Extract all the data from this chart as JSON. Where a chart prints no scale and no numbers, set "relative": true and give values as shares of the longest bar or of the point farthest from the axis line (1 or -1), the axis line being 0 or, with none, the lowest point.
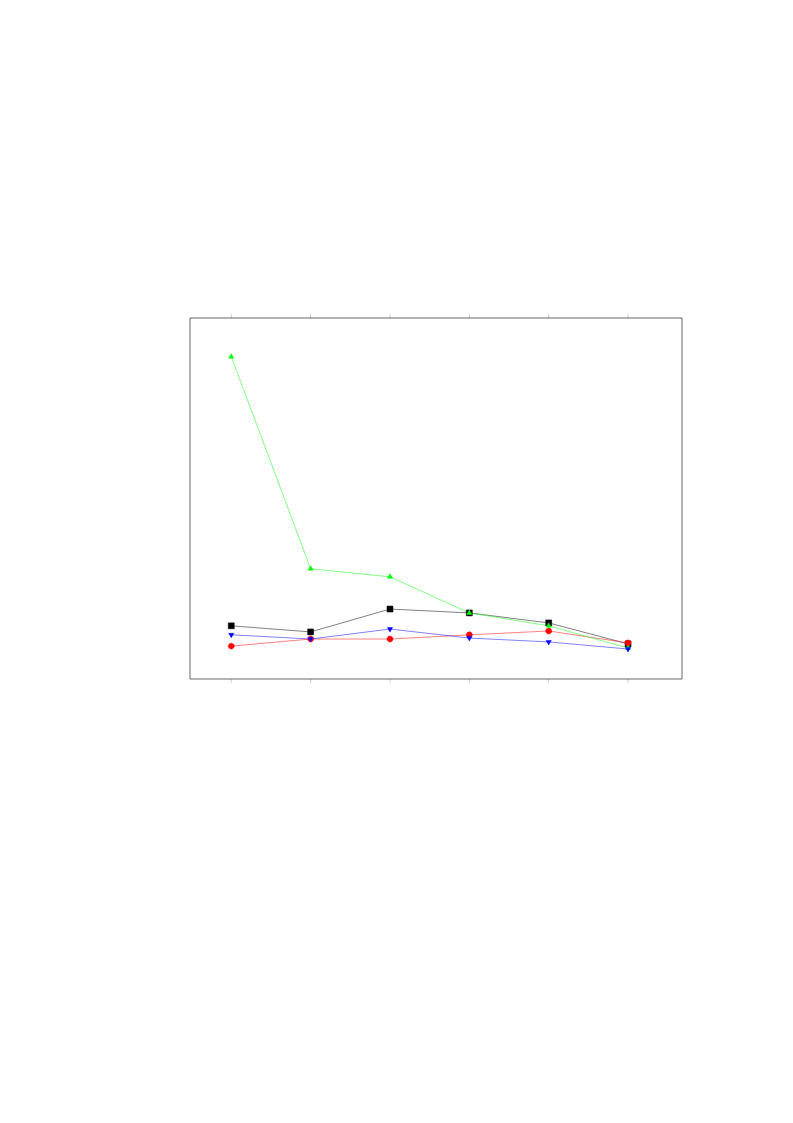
{
  "chart_data": {
    "type": "line",
    "relative": true,
    "categories": [
      null,
      null,
      null,
      null,
      null,
      null
    ],
    "series": [
      {
        "color": "#000000",
        "marker": "square",
        "values": [
          0.165,
          0.146,
          0.217,
          0.205,
          0.174,
          0.109
        ]
      },
      {
        "color": "#ff0000",
        "marker": "circle",
        "values": [
          0.102,
          0.124,
          0.124,
          0.137,
          0.149,
          0.112
        ]
      },
      {
        "color": "#00ff00",
        "marker": "triangle",
        "values": [
          1,
          0.342,
          0.317,
          0.205,
          0.165,
          0.096
        ]
      },
      {
        "color": "#0000ff",
        "marker": "triangle down",
        "values": [
          0.137,
          0.124,
          0.155,
          0.127,
          0.115,
          0.093
        ]
      }
    ]
  }
}
